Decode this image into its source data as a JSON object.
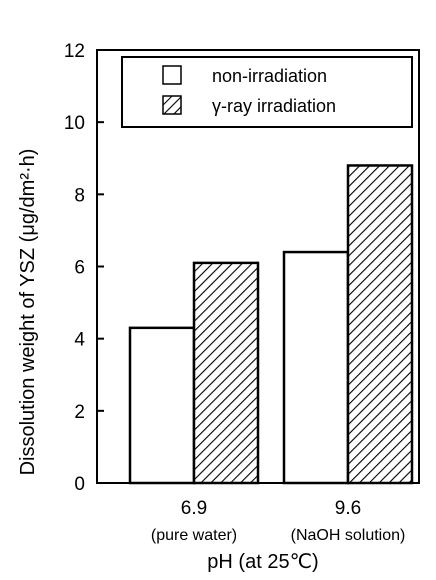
{
  "chart_data": {
    "type": "bar",
    "title": "",
    "xlabel": "pH (at 25℃)",
    "ylabel": "Dissolution weight of YSZ (μg/dm²·h)",
    "ylim": [
      0,
      12
    ],
    "yticks": [
      "0",
      "2",
      "4",
      "6",
      "8",
      "10",
      "12"
    ],
    "categories": [
      "6.9",
      "9.6"
    ],
    "category_sublabels": [
      "(pure water)",
      "(NaOH solution)"
    ],
    "series": [
      {
        "name": "non-irradiation",
        "values": [
          4.3,
          6.4
        ],
        "fill": "#ffffff"
      },
      {
        "name": "γ-ray irradiation",
        "values": [
          6.1,
          8.8
        ],
        "fill": "hatched"
      }
    ],
    "legend_position": "top-right",
    "grid": false
  }
}
